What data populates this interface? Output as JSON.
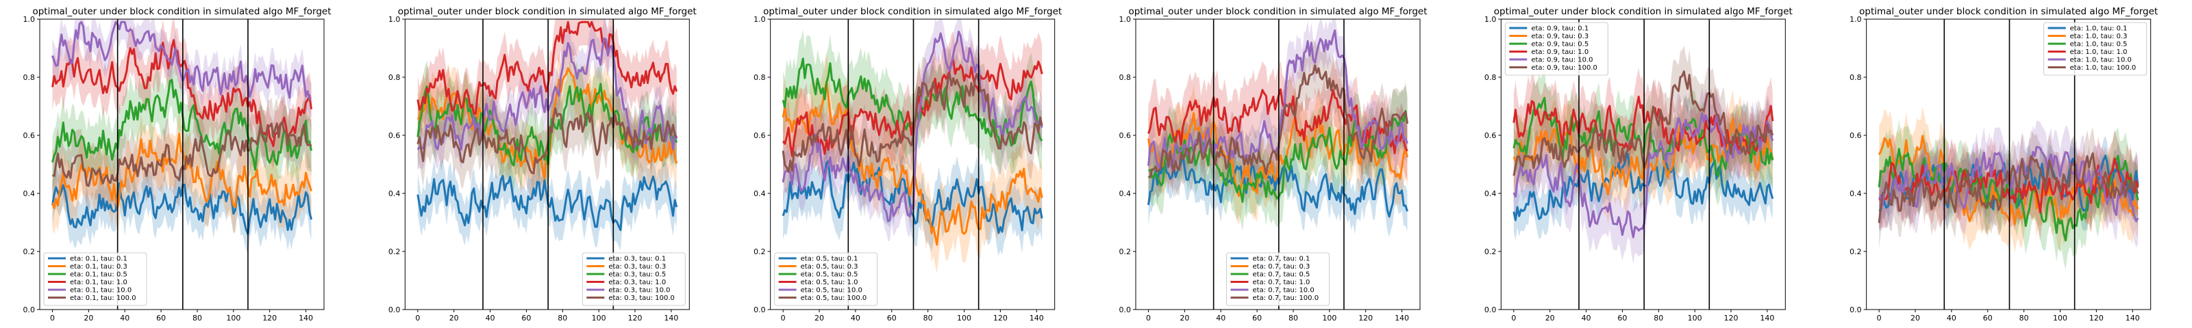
{
  "figure": {
    "background": "#ffffff"
  },
  "chart_data": [
    {
      "type": "line",
      "title": "optimal_outer under block condition in simulated algo MF_forget",
      "xlabel": "",
      "ylabel": "",
      "xlim": [
        -7,
        150
      ],
      "ylim": [
        0.0,
        1.0
      ],
      "xticks": [
        0,
        20,
        40,
        60,
        80,
        100,
        120,
        140
      ],
      "yticks": [
        0.0,
        0.2,
        0.4,
        0.6,
        0.8,
        1.0
      ],
      "block_boundaries": [
        36,
        72,
        108
      ],
      "legend_position": "lower-left",
      "grid": false,
      "series": [
        {
          "name": "eta: 0.1, tau: 0.1",
          "color": "#1f77b4",
          "block_means": [
            0.37,
            0.36,
            0.36,
            0.35
          ],
          "band": 0.07
        },
        {
          "name": "eta: 0.1, tau: 0.3",
          "color": "#ff7f0e",
          "block_means": [
            0.42,
            0.55,
            0.46,
            0.45
          ],
          "band": 0.09
        },
        {
          "name": "eta: 0.1, tau: 0.5",
          "color": "#2ca02c",
          "block_means": [
            0.6,
            0.72,
            0.62,
            0.55
          ],
          "band": 0.09
        },
        {
          "name": "eta: 0.1, tau: 1.0",
          "color": "#d62728",
          "block_means": [
            0.8,
            0.86,
            0.74,
            0.64
          ],
          "band": 0.08
        },
        {
          "name": "eta: 0.1, tau: 10.0",
          "color": "#9467bd",
          "block_means": [
            0.95,
            0.9,
            0.8,
            0.78
          ],
          "band": 0.06
        },
        {
          "name": "eta: 0.1, tau: 100.0",
          "color": "#8c564b",
          "block_means": [
            0.48,
            0.5,
            0.56,
            0.6
          ],
          "band": 0.09
        }
      ]
    },
    {
      "type": "line",
      "title": "optimal_outer under block condition in simulated algo MF_forget",
      "xlabel": "",
      "ylabel": "",
      "xlim": [
        -7,
        150
      ],
      "ylim": [
        0.0,
        1.0
      ],
      "xticks": [
        0,
        20,
        40,
        60,
        80,
        100,
        120,
        140
      ],
      "yticks": [
        0.0,
        0.2,
        0.4,
        0.6,
        0.8,
        1.0
      ],
      "block_boundaries": [
        36,
        72,
        108
      ],
      "legend_position": "lower-right",
      "grid": false,
      "series": [
        {
          "name": "eta: 0.3, tau: 0.1",
          "color": "#1f77b4",
          "block_means": [
            0.4,
            0.4,
            0.36,
            0.4
          ],
          "band": 0.07
        },
        {
          "name": "eta: 0.3, tau: 0.3",
          "color": "#ff7f0e",
          "block_means": [
            0.7,
            0.55,
            0.75,
            0.55
          ],
          "band": 0.09
        },
        {
          "name": "eta: 0.3, tau: 0.5",
          "color": "#2ca02c",
          "block_means": [
            0.68,
            0.55,
            0.7,
            0.62
          ],
          "band": 0.09
        },
        {
          "name": "eta: 0.3, tau: 1.0",
          "color": "#d62728",
          "block_means": [
            0.75,
            0.78,
            0.95,
            0.78
          ],
          "band": 0.08
        },
        {
          "name": "eta: 0.3, tau: 10.0",
          "color": "#9467bd",
          "block_means": [
            0.62,
            0.7,
            0.88,
            0.6
          ],
          "band": 0.07
        },
        {
          "name": "eta: 0.3, tau: 100.0",
          "color": "#8c564b",
          "block_means": [
            0.58,
            0.58,
            0.62,
            0.62
          ],
          "band": 0.09
        }
      ]
    },
    {
      "type": "line",
      "title": "optimal_outer under block condition in simulated algo MF_forget",
      "xlabel": "",
      "ylabel": "",
      "xlim": [
        -7,
        150
      ],
      "ylim": [
        0.0,
        1.0
      ],
      "xticks": [
        0,
        20,
        40,
        60,
        80,
        100,
        120,
        140
      ],
      "yticks": [
        0.0,
        0.2,
        0.4,
        0.6,
        0.8,
        1.0
      ],
      "block_boundaries": [
        36,
        72,
        108
      ],
      "legend_position": "lower-left",
      "grid": false,
      "series": [
        {
          "name": "eta: 0.5, tau: 0.1",
          "color": "#1f77b4",
          "block_means": [
            0.42,
            0.4,
            0.36,
            0.34
          ],
          "band": 0.08
        },
        {
          "name": "eta: 0.5, tau: 0.3",
          "color": "#ff7f0e",
          "block_means": [
            0.7,
            0.45,
            0.3,
            0.4
          ],
          "band": 0.1
        },
        {
          "name": "eta: 0.5, tau: 0.5",
          "color": "#2ca02c",
          "block_means": [
            0.8,
            0.72,
            0.7,
            0.65
          ],
          "band": 0.1
        },
        {
          "name": "eta: 0.5, tau: 1.0",
          "color": "#d62728",
          "block_means": [
            0.6,
            0.65,
            0.78,
            0.82
          ],
          "band": 0.1
        },
        {
          "name": "eta: 0.5, tau: 10.0",
          "color": "#9467bd",
          "block_means": [
            0.5,
            0.38,
            0.88,
            0.62
          ],
          "band": 0.07
        },
        {
          "name": "eta: 0.5, tau: 100.0",
          "color": "#8c564b",
          "block_means": [
            0.55,
            0.58,
            0.78,
            0.62
          ],
          "band": 0.09
        }
      ]
    },
    {
      "type": "line",
      "title": "optimal_outer under block condition in simulated algo MF_forget",
      "xlabel": "",
      "ylabel": "",
      "xlim": [
        -7,
        150
      ],
      "ylim": [
        0.0,
        1.0
      ],
      "xticks": [
        0,
        20,
        40,
        60,
        80,
        100,
        120,
        140
      ],
      "yticks": [
        0.0,
        0.2,
        0.4,
        0.6,
        0.8,
        1.0
      ],
      "block_boundaries": [
        36,
        72,
        108
      ],
      "legend_position": "lower-center",
      "grid": false,
      "series": [
        {
          "name": "eta: 0.7, tau: 0.1",
          "color": "#1f77b4",
          "block_means": [
            0.45,
            0.43,
            0.4,
            0.4
          ],
          "band": 0.07
        },
        {
          "name": "eta: 0.7, tau: 0.3",
          "color": "#ff7f0e",
          "block_means": [
            0.62,
            0.5,
            0.6,
            0.55
          ],
          "band": 0.1
        },
        {
          "name": "eta: 0.7, tau: 0.5",
          "color": "#2ca02c",
          "block_means": [
            0.55,
            0.45,
            0.55,
            0.62
          ],
          "band": 0.1
        },
        {
          "name": "eta: 0.7, tau: 1.0",
          "color": "#d62728",
          "block_means": [
            0.62,
            0.65,
            0.66,
            0.6
          ],
          "band": 0.1
        },
        {
          "name": "eta: 0.7, tau: 10.0",
          "color": "#9467bd",
          "block_means": [
            0.55,
            0.58,
            0.88,
            0.6
          ],
          "band": 0.07
        },
        {
          "name": "eta: 0.7, tau: 100.0",
          "color": "#8c564b",
          "block_means": [
            0.55,
            0.55,
            0.78,
            0.6
          ],
          "band": 0.09
        }
      ]
    },
    {
      "type": "line",
      "title": "optimal_outer under block condition in simulated algo MF_forget",
      "xlabel": "",
      "ylabel": "",
      "xlim": [
        -7,
        150
      ],
      "ylim": [
        0.0,
        1.0
      ],
      "xticks": [
        0,
        20,
        40,
        60,
        80,
        100,
        120,
        140
      ],
      "yticks": [
        0.0,
        0.2,
        0.4,
        0.6,
        0.8,
        1.0
      ],
      "block_boundaries": [
        36,
        72,
        108
      ],
      "legend_position": "upper-left",
      "grid": false,
      "series": [
        {
          "name": "eta: 0.9, tau: 0.1",
          "color": "#1f77b4",
          "block_means": [
            0.42,
            0.42,
            0.42,
            0.45
          ],
          "band": 0.07
        },
        {
          "name": "eta: 0.9, tau: 0.3",
          "color": "#ff7f0e",
          "block_means": [
            0.55,
            0.48,
            0.55,
            0.55
          ],
          "band": 0.1
        },
        {
          "name": "eta: 0.9, tau: 0.5",
          "color": "#2ca02c",
          "block_means": [
            0.62,
            0.6,
            0.58,
            0.55
          ],
          "band": 0.1
        },
        {
          "name": "eta: 0.9, tau: 1.0",
          "color": "#d62728",
          "block_means": [
            0.65,
            0.65,
            0.62,
            0.6
          ],
          "band": 0.1
        },
        {
          "name": "eta: 0.9, tau: 10.0",
          "color": "#9467bd",
          "block_means": [
            0.45,
            0.32,
            0.62,
            0.6
          ],
          "band": 0.09
        },
        {
          "name": "eta: 0.9, tau: 100.0",
          "color": "#8c564b",
          "block_means": [
            0.55,
            0.55,
            0.76,
            0.62
          ],
          "band": 0.09
        }
      ]
    },
    {
      "type": "line",
      "title": "optimal_outer under block condition in simulated algo MF_forget",
      "xlabel": "",
      "ylabel": "",
      "xlim": [
        -7,
        150
      ],
      "ylim": [
        0.0,
        1.0
      ],
      "xticks": [
        0,
        20,
        40,
        60,
        80,
        100,
        120,
        140
      ],
      "yticks": [
        0.0,
        0.2,
        0.4,
        0.6,
        0.8,
        1.0
      ],
      "block_boundaries": [
        36,
        72,
        108
      ],
      "legend_position": "upper-right",
      "grid": false,
      "series": [
        {
          "name": "eta: 1.0, tau: 0.1",
          "color": "#1f77b4",
          "block_means": [
            0.42,
            0.42,
            0.44,
            0.42
          ],
          "band": 0.07
        },
        {
          "name": "eta: 1.0, tau: 0.3",
          "color": "#ff7f0e",
          "block_means": [
            0.55,
            0.4,
            0.35,
            0.42
          ],
          "band": 0.1
        },
        {
          "name": "eta: 1.0, tau: 0.5",
          "color": "#2ca02c",
          "block_means": [
            0.48,
            0.42,
            0.32,
            0.4
          ],
          "band": 0.1
        },
        {
          "name": "eta: 1.0, tau: 1.0",
          "color": "#d62728",
          "block_means": [
            0.48,
            0.45,
            0.42,
            0.45
          ],
          "band": 0.1
        },
        {
          "name": "eta: 1.0, tau: 10.0",
          "color": "#9467bd",
          "block_means": [
            0.42,
            0.45,
            0.48,
            0.42
          ],
          "band": 0.09
        },
        {
          "name": "eta: 1.0, tau: 100.0",
          "color": "#8c564b",
          "block_means": [
            0.38,
            0.42,
            0.5,
            0.42
          ],
          "band": 0.09
        }
      ]
    }
  ]
}
